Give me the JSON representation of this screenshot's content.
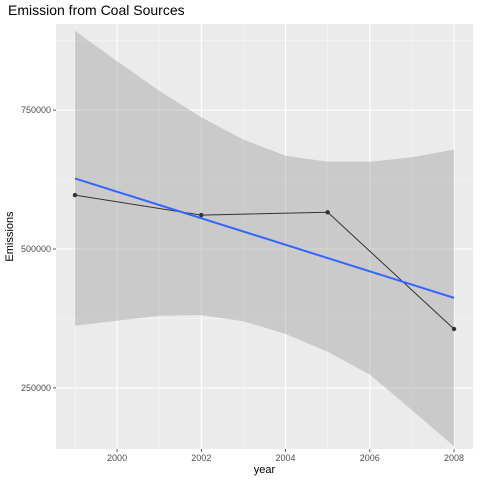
{
  "chart_data": {
    "type": "line",
    "title": "Emission from Coal Sources",
    "xlabel": "year",
    "ylabel": "Emissions",
    "xlim": [
      1998.55,
      2008.45
    ],
    "ylim": [
      140000,
      905000
    ],
    "x_ticks": [
      2000,
      2002,
      2004,
      2006,
      2008
    ],
    "y_ticks": [
      250000,
      500000,
      750000
    ],
    "x_tick_labels": [
      "2000",
      "2002",
      "2004",
      "2006",
      "2008"
    ],
    "y_tick_labels": [
      "250000",
      "500000",
      "750000"
    ],
    "grid": true,
    "series": [
      {
        "x": [
          1999,
          2002,
          2005,
          2008
        ],
        "y": [
          597000,
          561000,
          566000,
          356000
        ],
        "color": "#333333",
        "markers": true
      }
    ],
    "trend": {
      "method": "linear",
      "x": [
        1999,
        2008
      ],
      "y": [
        627000,
        412000
      ],
      "color": "#3366ff",
      "confidence_band": {
        "x": [
          1999,
          2000,
          2001,
          2002,
          2003,
          2004,
          2005,
          2006,
          2007,
          2008
        ],
        "lower": [
          362000,
          371000,
          380000,
          381000,
          370000,
          347000,
          315000,
          274000,
          210000,
          145000
        ],
        "upper": [
          893000,
          838000,
          785000,
          737000,
          697000,
          668000,
          657000,
          657000,
          665000,
          679000
        ],
        "color": "#999999"
      }
    },
    "panel_color": "#ebebeb"
  }
}
